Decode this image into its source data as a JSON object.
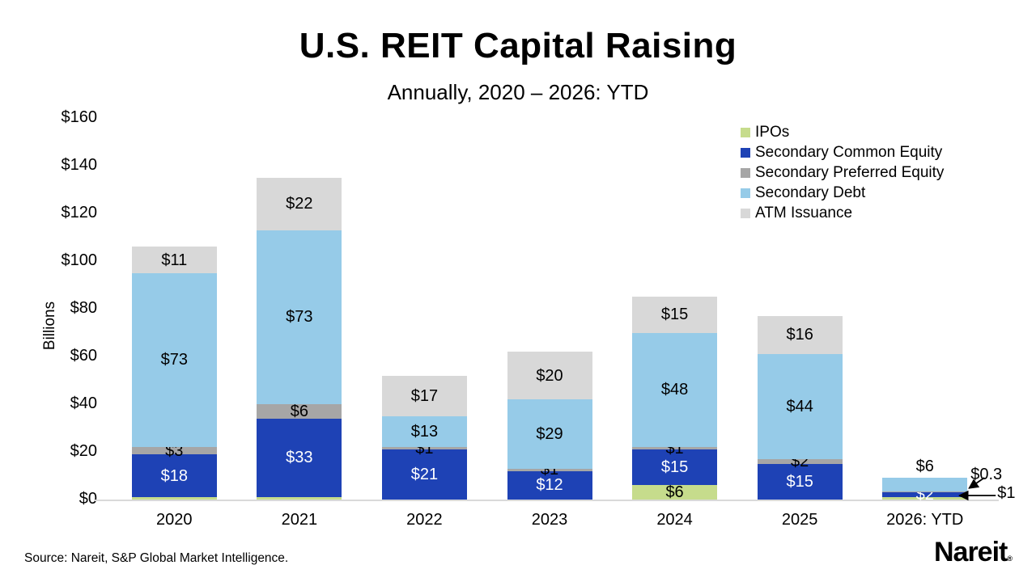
{
  "chart_data": {
    "type": "bar",
    "stacked": true,
    "title": "U.S. REIT Capital Raising",
    "subtitle": "Annually, 2020 – 2026: YTD",
    "ylabel": "Billions",
    "ylim": [
      0,
      160
    ],
    "ytick_interval": 20,
    "ytick_labels": [
      "$0",
      "$20",
      "$40",
      "$60",
      "$80",
      "$100",
      "$120",
      "$140",
      "$160"
    ],
    "grid": false,
    "legend_position": "top-right",
    "categories": [
      "2020",
      "2021",
      "2022",
      "2023",
      "2024",
      "2025",
      "2026: YTD"
    ],
    "series": [
      {
        "name": "IPOs",
        "color": "#c6dc8c",
        "values": [
          1,
          1,
          0,
          0,
          6,
          0,
          1
        ],
        "labels": [
          "",
          "",
          "",
          "",
          "$6",
          "",
          ""
        ]
      },
      {
        "name": "Secondary Common Equity",
        "color": "#1e42b5",
        "label_color": "#ffffff",
        "values": [
          18,
          33,
          21,
          12,
          15,
          15,
          2
        ],
        "labels": [
          "$18",
          "$33",
          "$21",
          "$12",
          "$15",
          "$15",
          "$2"
        ]
      },
      {
        "name": "Secondary Preferred Equity",
        "color": "#a6a6a6",
        "values": [
          3,
          6,
          1,
          1,
          1,
          2,
          0.3
        ],
        "labels": [
          "$3",
          "$6",
          "$1",
          "$1",
          "$1",
          "$2",
          ""
        ]
      },
      {
        "name": "Secondary Debt",
        "color": "#96cbe8",
        "values": [
          73,
          73,
          13,
          29,
          48,
          44,
          6
        ],
        "labels": [
          "$73",
          "$73",
          "$13",
          "$29",
          "$48",
          "$44",
          "$6"
        ],
        "label_above": [
          6
        ]
      },
      {
        "name": "ATM Issuance",
        "color": "#d8d8d8",
        "values": [
          11,
          22,
          17,
          20,
          15,
          16,
          0
        ],
        "labels": [
          "$11",
          "$22",
          "$17",
          "$20",
          "$15",
          "$16",
          ""
        ]
      }
    ],
    "annotations": [
      {
        "text": "$0.3",
        "series": "Secondary Preferred Equity",
        "category": "2026: YTD"
      },
      {
        "text": "$1",
        "series": "IPOs",
        "category": "2026: YTD"
      }
    ]
  },
  "footer": {
    "source": "Source: Nareit, S&P Global Market Intelligence.",
    "logo": "Nareit",
    "logo_mark": "®"
  }
}
